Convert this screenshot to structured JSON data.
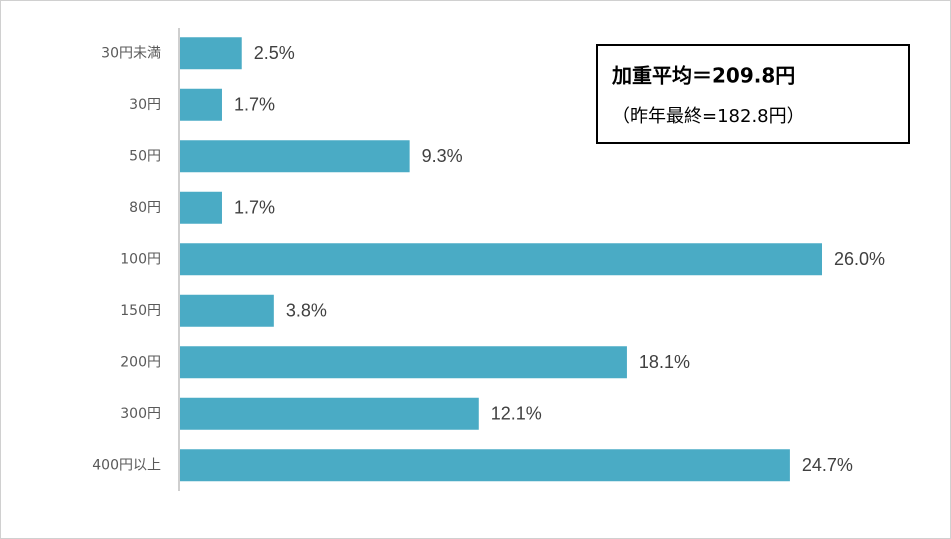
{
  "chart_data": {
    "type": "bar",
    "orientation": "horizontal",
    "categories": [
      "30円未満",
      "30円",
      "50円",
      "80円",
      "100円",
      "150円",
      "200円",
      "300円",
      "400円以上"
    ],
    "values": [
      2.5,
      1.7,
      9.3,
      1.7,
      26.0,
      3.8,
      18.1,
      12.1,
      24.7
    ],
    "value_labels": [
      "2.5%",
      "1.7%",
      "9.3%",
      "1.7%",
      "26.0%",
      "3.8%",
      "18.1%",
      "12.1%",
      "24.7%"
    ],
    "color": "#4aabc5",
    "annotations": [
      "加重平均＝209.8円",
      "（昨年最終=182.8円）"
    ]
  }
}
